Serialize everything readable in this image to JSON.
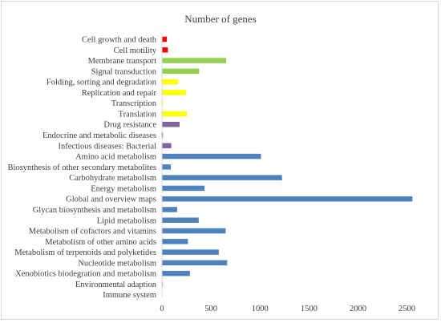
{
  "chart_data": {
    "type": "bar",
    "orientation": "horizontal",
    "title": "Number of genes",
    "xlabel": "",
    "ylabel": "",
    "xlim": [
      0,
      2700
    ],
    "xticks": [
      0,
      500,
      1000,
      1500,
      2000,
      2500
    ],
    "xtick_labels": [
      "0",
      "500",
      "1000",
      "1500",
      "2000",
      "2500"
    ],
    "grid": false,
    "legend": "none",
    "categories": [
      "Cell growth and death",
      "Cell motility",
      "Membrane transport",
      "Signal transduction",
      "Folding, sorting and degradation",
      "Replication and repair",
      "Transcription",
      "Translation",
      "Drug resistance",
      "Endocrine and metabolic diseases",
      "Infectious diseases: Bacterial",
      "Amino acid metabolism",
      "Biosynthesis of other secondary metabolites",
      "Carbohydrate metabolism",
      "Energy metabolism",
      "Global and overview maps",
      "Glycan biosynthesis and metabolism",
      "Lipid metabolism",
      "Metabolism of cofactors and vitamins",
      "Metabolism of other amino acids",
      "Metabolism of terpenoids and polyketides",
      "Nucleotide metabolism",
      "Xenobiotics biodegration and metabolism",
      "Environmental adaption",
      "Immune system"
    ],
    "values": [
      50,
      60,
      655,
      380,
      165,
      245,
      5,
      255,
      180,
      5,
      95,
      1010,
      90,
      1225,
      435,
      2555,
      155,
      375,
      650,
      265,
      580,
      665,
      285,
      5,
      0
    ],
    "colors": [
      "#ff0000",
      "#ff0000",
      "#92d050",
      "#92d050",
      "#ffff00",
      "#ffff00",
      "#ffff00",
      "#ffff00",
      "#8064a2",
      "#8064a2",
      "#8064a2",
      "#4f81bd",
      "#4f81bd",
      "#4f81bd",
      "#4f81bd",
      "#4f81bd",
      "#4f81bd",
      "#4f81bd",
      "#4f81bd",
      "#4f81bd",
      "#4f81bd",
      "#4f81bd",
      "#4f81bd",
      "#f79646",
      "#f79646"
    ],
    "axis_color": "#d9d9d9",
    "text_color": "#404040"
  }
}
